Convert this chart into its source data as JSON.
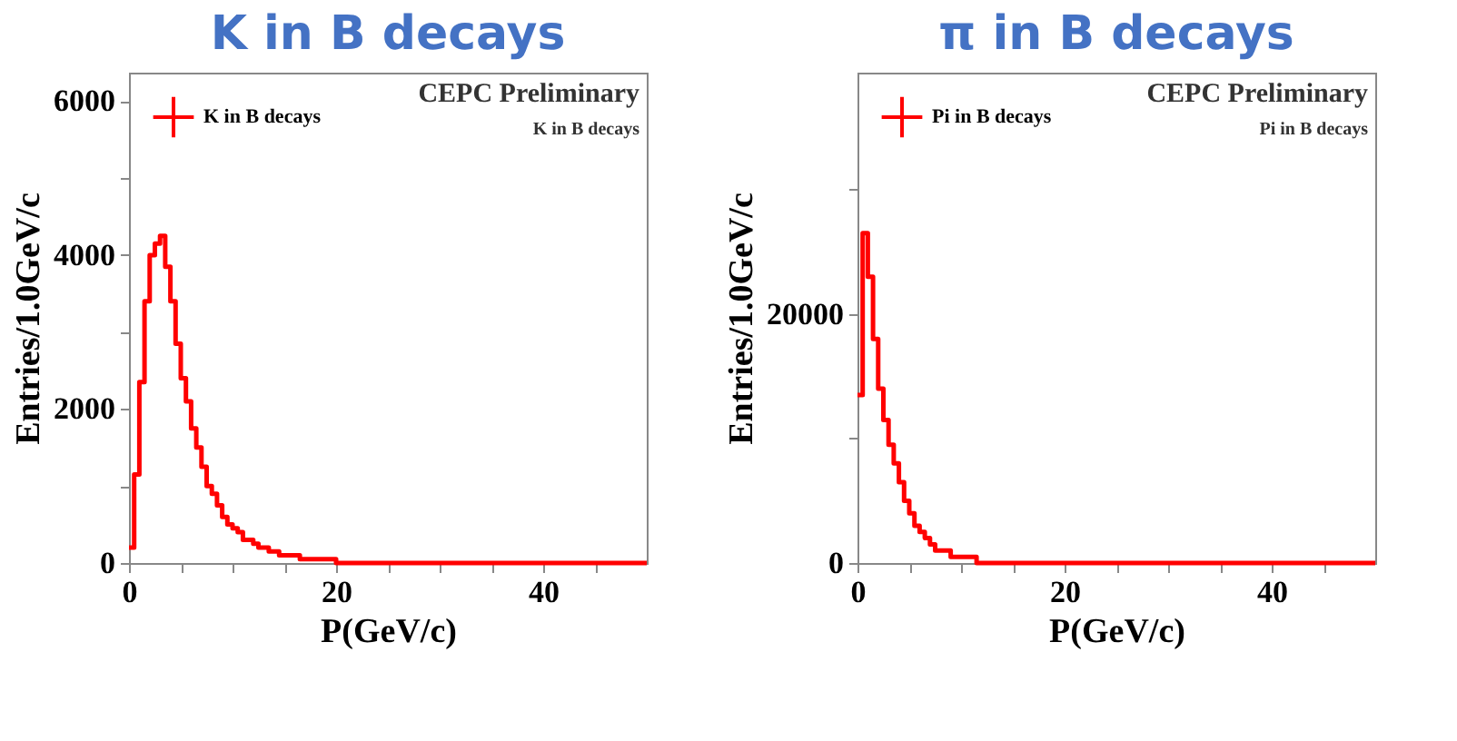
{
  "chart_data": [
    {
      "type": "histogram",
      "title": "K in B decays",
      "xlabel": "P(GeV/c)",
      "ylabel": "Entries/1.0GeV/c",
      "legend": "top left",
      "grid": false,
      "annotations": [
        "CEPC Preliminary",
        "K  in B decays"
      ],
      "xlim": [
        0,
        50
      ],
      "xticks": [
        0,
        {
          "value": 5,
          "label": null
        },
        {
          "value": 10,
          "label": null
        },
        {
          "value": 15,
          "label": null
        },
        20,
        {
          "value": 25,
          "label": null
        },
        {
          "value": 30,
          "label": null
        },
        {
          "value": 35,
          "label": null
        },
        40,
        {
          "value": 45,
          "label": null
        }
      ],
      "ylim": [
        0,
        6370
      ],
      "yticks": [
        0,
        {
          "value": 1000,
          "label": null
        },
        2000,
        {
          "value": 3000,
          "label": null
        },
        4000,
        {
          "value": 5000,
          "label": null
        },
        6000
      ],
      "bins": [
        0,
        0.5,
        1,
        1.5,
        2,
        2.5,
        3,
        3.5,
        4,
        4.5,
        5,
        5.5,
        6,
        6.5,
        7,
        7.5,
        8,
        8.5,
        9,
        9.5,
        10,
        10.5,
        11,
        11.5,
        12,
        12.5,
        13,
        13.5,
        14,
        14.5,
        15,
        15.5,
        16,
        16.5,
        17,
        17.5,
        18,
        18.5,
        19,
        19.5,
        20,
        20.5,
        21,
        21.5,
        22,
        22.5,
        23,
        23.5,
        24,
        24.5,
        25,
        25.5,
        26,
        26.5,
        27,
        27.5,
        28,
        28.5,
        29,
        29.5,
        30,
        30.5,
        31,
        31.5,
        32,
        32.5,
        33,
        33.5,
        34,
        34.5,
        35,
        35.5,
        36,
        36.5,
        37,
        37.5,
        38,
        38.5,
        39,
        39.5,
        40,
        40.5,
        41,
        41.5,
        42,
        42.5,
        43,
        43.5,
        44,
        44.5,
        45,
        45.5,
        46,
        46.5,
        47,
        47.5,
        48,
        48.5,
        49,
        49.5,
        50
      ],
      "series": [
        {
          "name": "K  in B decays",
          "color": "#ff0000",
          "values": [
            200,
            1150,
            2350,
            3400,
            4000,
            4150,
            4250,
            3850,
            3400,
            2850,
            2400,
            2100,
            1750,
            1500,
            1250,
            1000,
            900,
            750,
            600,
            500,
            450,
            400,
            300,
            300,
            250,
            200,
            200,
            150,
            150,
            100,
            100,
            100,
            100,
            50,
            50,
            50,
            50,
            50,
            50,
            50,
            0,
            0,
            0,
            0,
            0,
            0,
            0,
            0,
            0,
            0,
            0,
            0,
            0,
            0,
            0,
            0,
            0,
            0,
            0,
            0,
            0,
            0,
            0,
            0,
            0,
            0,
            0,
            0,
            0,
            0,
            0,
            0,
            0,
            0,
            0,
            0,
            0,
            0,
            0,
            0,
            0,
            0,
            0,
            0,
            0,
            0,
            0,
            0,
            0,
            0,
            0,
            0,
            0,
            0,
            0,
            0,
            0,
            0,
            0,
            0
          ]
        }
      ]
    },
    {
      "type": "histogram",
      "title": "π in B decays",
      "xlabel": "P(GeV/c)",
      "ylabel": "Entries/1.0GeV/c",
      "legend": "top left",
      "grid": false,
      "annotations": [
        "CEPC Preliminary",
        "Pi in B decays"
      ],
      "xlim": [
        0,
        50
      ],
      "xticks": [
        0,
        {
          "value": 5,
          "label": null
        },
        {
          "value": 10,
          "label": null
        },
        {
          "value": 15,
          "label": null
        },
        20,
        {
          "value": 25,
          "label": null
        },
        {
          "value": 30,
          "label": null
        },
        {
          "value": 35,
          "label": null
        },
        40,
        {
          "value": 45,
          "label": null
        }
      ],
      "ylim": [
        0,
        39400
      ],
      "yticks": [
        0,
        {
          "value": 10000,
          "label": null
        },
        20000,
        {
          "value": 30000,
          "label": null
        }
      ],
      "bins": [
        0,
        0.5,
        1,
        1.5,
        2,
        2.5,
        3,
        3.5,
        4,
        4.5,
        5,
        5.5,
        6,
        6.5,
        7,
        7.5,
        8,
        8.5,
        9,
        9.5,
        10,
        10.5,
        11,
        11.5,
        12,
        12.5,
        13,
        13.5,
        14,
        14.5,
        15,
        15.5,
        16,
        16.5,
        17,
        17.5,
        18,
        18.5,
        19,
        19.5,
        20,
        20.5,
        21,
        21.5,
        22,
        22.5,
        23,
        23.5,
        24,
        24.5,
        25,
        25.5,
        26,
        26.5,
        27,
        27.5,
        28,
        28.5,
        29,
        29.5,
        30,
        30.5,
        31,
        31.5,
        32,
        32.5,
        33,
        33.5,
        34,
        34.5,
        35,
        35.5,
        36,
        36.5,
        37,
        37.5,
        38,
        38.5,
        39,
        39.5,
        40,
        40.5,
        41,
        41.5,
        42,
        42.5,
        43,
        43.5,
        44,
        44.5,
        45,
        45.5,
        46,
        46.5,
        47,
        47.5,
        48,
        48.5,
        49,
        49.5,
        50
      ],
      "series": [
        {
          "name": "Pi in B decays",
          "color": "#ff0000",
          "values": [
            13500,
            26500,
            23000,
            18000,
            14000,
            11500,
            9500,
            8000,
            6500,
            5000,
            4000,
            3000,
            2500,
            2000,
            1500,
            1000,
            1000,
            1000,
            500,
            500,
            500,
            500,
            500,
            0,
            0,
            0,
            0,
            0,
            0,
            0,
            0,
            0,
            0,
            0,
            0,
            0,
            0,
            0,
            0,
            0,
            0,
            0,
            0,
            0,
            0,
            0,
            0,
            0,
            0,
            0,
            0,
            0,
            0,
            0,
            0,
            0,
            0,
            0,
            0,
            0,
            0,
            0,
            0,
            0,
            0,
            0,
            0,
            0,
            0,
            0,
            0,
            0,
            0,
            0,
            0,
            0,
            0,
            0,
            0,
            0,
            0,
            0,
            0,
            0,
            0,
            0,
            0,
            0,
            0,
            0,
            0,
            0,
            0,
            0,
            0,
            0,
            0,
            0,
            0,
            0
          ]
        }
      ]
    }
  ]
}
